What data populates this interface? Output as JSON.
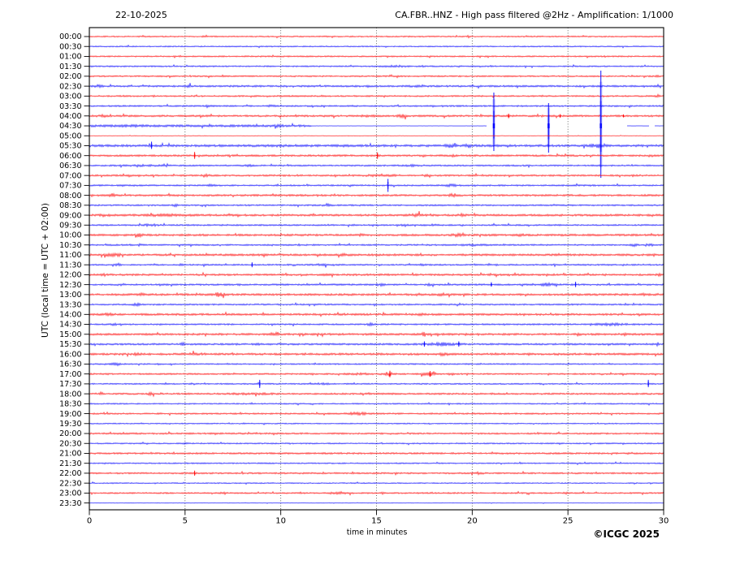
{
  "header": {
    "date": "22-10-2025",
    "title": "CA.FBR..HNZ - High pass filtered @2Hz - Amplification: 1/1000"
  },
  "axes": {
    "y_label": "UTC (local time = UTC + 02:00)",
    "x_label": "time in minutes",
    "x_ticks": [
      0,
      5,
      10,
      15,
      20,
      25,
      30
    ]
  },
  "footer": {
    "copyright": "©ICGC 2025"
  },
  "chart_data": {
    "type": "line",
    "subtype": "helicorder-seismogram",
    "station": "CA.FBR..HNZ",
    "date": "22-10-2025",
    "filter": "High pass filtered @2Hz",
    "amplification": "1/1000",
    "minutes_per_row": 30,
    "x_range_minutes": [
      0,
      30
    ],
    "x_ticks": [
      0,
      5,
      10,
      15,
      20,
      25,
      30
    ],
    "grid_minutes": [
      5,
      10,
      15,
      20,
      25
    ],
    "trace_colors": {
      "red": "#ff0000",
      "blue": "#0000ff"
    },
    "frame_color": "#000000",
    "rows": [
      {
        "label": "00:00",
        "color": "red",
        "amp": 0.8,
        "events": [],
        "spikes": []
      },
      {
        "label": "00:30",
        "color": "blue",
        "amp": 0.75,
        "events": [],
        "spikes": []
      },
      {
        "label": "01:00",
        "color": "red",
        "amp": 0.85,
        "events": [],
        "spikes": []
      },
      {
        "label": "01:30",
        "color": "blue",
        "amp": 0.85,
        "events": [
          [
            16,
            0.7,
            0.6
          ]
        ],
        "spikes": []
      },
      {
        "label": "02:00",
        "color": "red",
        "amp": 0.9,
        "events": [
          [
            29.6,
            0.9,
            0.12
          ]
        ],
        "spikes": []
      },
      {
        "label": "02:30",
        "color": "blue",
        "amp": 1.1,
        "events": [
          [
            0.5,
            1.0,
            0.2
          ],
          [
            5.2,
            0.8,
            0.15
          ],
          [
            17,
            0.5,
            0.5
          ]
        ],
        "spikes": []
      },
      {
        "label": "03:00",
        "color": "red",
        "amp": 0.95,
        "events": [
          [
            21.1,
            0.9,
            0.06
          ],
          [
            29.7,
            1.2,
            0.15
          ]
        ],
        "spikes": []
      },
      {
        "label": "03:30",
        "color": "blue",
        "amp": 0.95,
        "events": [
          [
            6.2,
            1.4,
            0.1
          ],
          [
            9.5,
            0.7,
            0.25
          ]
        ],
        "spikes": []
      },
      {
        "label": "04:00",
        "color": "red",
        "amp": 1.15,
        "events": [
          [
            0.7,
            1.1,
            0.2
          ],
          [
            14.6,
            0.7,
            0.35
          ],
          [
            16.35,
            1.8,
            0.2
          ]
        ],
        "spikes": [
          [
            21.9,
            2.8,
            2.8
          ],
          [
            24.6,
            2.2,
            2.2
          ],
          [
            27.9,
            1.8,
            1.8
          ]
        ]
      },
      {
        "label": "04:30",
        "color": "blue",
        "amp": 1.4,
        "segments": [
          [
            0,
            11.6,
            "n"
          ],
          [
            11.6,
            20.75,
            "f"
          ],
          [
            28.1,
            29.25,
            "f"
          ],
          [
            29.55,
            30,
            "f"
          ]
        ],
        "events": [
          [
            2.2,
            0.7,
            0.5
          ],
          [
            9.9,
            1.0,
            0.2
          ]
        ],
        "spikes": [
          [
            21.13,
            41,
            31
          ],
          [
            23.99,
            28,
            33
          ],
          [
            26.72,
            68,
            64
          ]
        ]
      },
      {
        "label": "05:00",
        "color": "red",
        "amp": 0.3,
        "events": [],
        "spikes": []
      },
      {
        "label": "05:30",
        "color": "blue",
        "amp": 1.4,
        "events": [
          [
            10,
            0.4,
            1.2
          ],
          [
            18.9,
            1.4,
            0.3
          ],
          [
            19.8,
            1.8,
            0.15
          ],
          [
            26.35,
            1.7,
            0.35
          ]
        ],
        "spikes": [
          [
            3.25,
            5,
            4
          ]
        ]
      },
      {
        "label": "06:00",
        "color": "red",
        "amp": 1.15,
        "events": [
          [
            17.4,
            0.9,
            0.12
          ],
          [
            18.96,
            1.2,
            0.1
          ],
          [
            29.3,
            1.4,
            0.1
          ]
        ],
        "spikes": [
          [
            5.5,
            4.5,
            4
          ],
          [
            15.05,
            4,
            4
          ]
        ]
      },
      {
        "label": "06:30",
        "color": "blue",
        "amp": 0.95,
        "events": [
          [
            3,
            0.6,
            0.9
          ],
          [
            8.3,
            0.7,
            0.25
          ],
          [
            16.9,
            0.6,
            0.4
          ]
        ],
        "spikes": []
      },
      {
        "label": "07:00",
        "color": "red",
        "amp": 1.05,
        "events": [
          [
            6.1,
            1.9,
            0.15
          ],
          [
            15.2,
            0.7,
            0.9
          ],
          [
            17.6,
            1.1,
            0.15
          ]
        ],
        "spikes": []
      },
      {
        "label": "07:30",
        "color": "blue",
        "amp": 0.95,
        "events": [
          [
            6.3,
            1.1,
            0.2
          ],
          [
            18.9,
            0.9,
            0.35
          ]
        ],
        "spikes": [
          [
            15.6,
            8,
            8
          ]
        ]
      },
      {
        "label": "08:00",
        "color": "red",
        "amp": 1.15,
        "events": [
          [
            1.2,
            1.4,
            0.15
          ],
          [
            19,
            1.4,
            0.25
          ]
        ],
        "spikes": []
      },
      {
        "label": "08:30",
        "color": "blue",
        "amp": 0.95,
        "events": [
          [
            4.5,
            1.1,
            0.18
          ],
          [
            12.4,
            1.1,
            0.18
          ]
        ],
        "spikes": []
      },
      {
        "label": "09:00",
        "color": "red",
        "amp": 1.25,
        "events": [
          [
            0.7,
            1.4,
            0.15
          ],
          [
            4,
            0.7,
            1.0
          ],
          [
            17.1,
            1.4,
            0.3
          ],
          [
            19.5,
            0.7,
            0.2
          ]
        ],
        "spikes": []
      },
      {
        "label": "09:30",
        "color": "blue",
        "amp": 0.95,
        "events": [
          [
            3.2,
            1.1,
            0.3
          ],
          [
            16.5,
            1.1,
            0.15
          ],
          [
            18,
            0.7,
            0.18
          ]
        ],
        "spikes": []
      },
      {
        "label": "10:00",
        "color": "red",
        "amp": 1.25,
        "events": [
          [
            2.6,
            1.4,
            0.18
          ],
          [
            14.2,
            0.9,
            0.18
          ],
          [
            19.2,
            1.4,
            0.22
          ],
          [
            22.5,
            0.7,
            0.2
          ]
        ],
        "spikes": []
      },
      {
        "label": "10:30",
        "color": "blue",
        "amp": 0.95,
        "events": [
          [
            2.6,
            0.9,
            0.18
          ],
          [
            11,
            0.7,
            0.15
          ],
          [
            13.6,
            0.7,
            0.15
          ],
          [
            20,
            0.6,
            0.7
          ],
          [
            28.5,
            1.1,
            0.2
          ],
          [
            29.3,
            0.9,
            0.15
          ]
        ],
        "spikes": []
      },
      {
        "label": "11:00",
        "color": "red",
        "amp": 1.25,
        "events": [
          [
            1.3,
            1.1,
            0.45
          ],
          [
            13.3,
            0.7,
            0.2
          ],
          [
            29.5,
            0.7,
            0.12
          ]
        ],
        "spikes": []
      },
      {
        "label": "11:30",
        "color": "blue",
        "amp": 0.95,
        "events": [
          [
            1.5,
            1.1,
            0.15
          ],
          [
            4.85,
            1.7,
            0.12
          ],
          [
            6,
            1.4,
            0.09
          ],
          [
            12.2,
            0.7,
            0.35
          ],
          [
            17.4,
            0.7,
            0.15
          ]
        ],
        "spikes": [
          [
            8.5,
            3,
            3
          ]
        ]
      },
      {
        "label": "12:00",
        "color": "red",
        "amp": 1.2,
        "events": [
          [
            0.7,
            1.5,
            0.15
          ],
          [
            12.4,
            1.1,
            0.15
          ],
          [
            29.7,
            1.1,
            0.12
          ]
        ],
        "spikes": []
      },
      {
        "label": "12:30",
        "color": "blue",
        "amp": 1.05,
        "events": [
          [
            1.7,
            0.7,
            0.2
          ],
          [
            15.2,
            1.1,
            0.18
          ],
          [
            17.8,
            0.7,
            0.18
          ],
          [
            23.9,
            1.7,
            0.28
          ]
        ],
        "spikes": [
          [
            21,
            3,
            2.5
          ],
          [
            25.4,
            3.5,
            3
          ]
        ]
      },
      {
        "label": "13:00",
        "color": "red",
        "amp": 1.25,
        "events": [
          [
            2.7,
            1.1,
            0.15
          ],
          [
            6.8,
            1.9,
            0.3
          ],
          [
            18.4,
            1.4,
            0.15
          ],
          [
            29,
            0.9,
            0.15
          ]
        ],
        "spikes": []
      },
      {
        "label": "13:30",
        "color": "blue",
        "amp": 0.95,
        "events": [
          [
            2.45,
            1.4,
            0.18
          ]
        ],
        "spikes": []
      },
      {
        "label": "14:00",
        "color": "red",
        "amp": 1.25,
        "events": [
          [
            1,
            1.4,
            0.15
          ],
          [
            17.3,
            1.4,
            0.15
          ]
        ],
        "spikes": []
      },
      {
        "label": "14:30",
        "color": "blue",
        "amp": 0.95,
        "events": [
          [
            1.3,
            0.7,
            0.18
          ],
          [
            14.7,
            1.1,
            0.15
          ],
          [
            27.2,
            0.9,
            0.8
          ]
        ],
        "spikes": []
      },
      {
        "label": "15:00",
        "color": "red",
        "amp": 1.25,
        "events": [
          [
            9.8,
            1.7,
            0.15
          ],
          [
            17.5,
            1.7,
            0.15
          ],
          [
            25.5,
            0.9,
            0.2
          ],
          [
            28,
            0.9,
            0.15
          ]
        ],
        "spikes": []
      },
      {
        "label": "15:30",
        "color": "blue",
        "amp": 1.1,
        "events": [
          [
            4.9,
            1.1,
            0.15
          ],
          [
            8.9,
            1.1,
            0.15
          ],
          [
            18.4,
            1.4,
            0.75
          ],
          [
            29.7,
            1.7,
            0.09
          ]
        ],
        "spikes": [
          [
            17.5,
            3.5,
            3
          ],
          [
            19.3,
            3.5,
            3
          ]
        ]
      },
      {
        "label": "16:00",
        "color": "red",
        "amp": 1.25,
        "events": [
          [
            2.5,
            1.1,
            0.15
          ],
          [
            5.5,
            0.7,
            0.5
          ],
          [
            18.5,
            1.4,
            0.2
          ],
          [
            23,
            0.7,
            0.15
          ]
        ],
        "spikes": []
      },
      {
        "label": "16:30",
        "color": "blue",
        "amp": 0.85,
        "events": [
          [
            1.4,
            1.7,
            0.2
          ]
        ],
        "spikes": []
      },
      {
        "label": "17:00",
        "color": "red",
        "amp": 0.95,
        "events": [
          [
            14,
            0.9,
            0.5
          ],
          [
            15.6,
            1.7,
            0.3
          ],
          [
            17.7,
            2.1,
            0.35
          ],
          [
            18.9,
            0.9,
            0.15
          ]
        ],
        "spikes": [
          [
            15.7,
            4,
            4
          ],
          [
            17.8,
            3.5,
            3.5
          ]
        ]
      },
      {
        "label": "17:30",
        "color": "blue",
        "amp": 0.85,
        "events": [
          [
            12.3,
            0.7,
            0.2
          ]
        ],
        "spikes": [
          [
            8.9,
            5,
            5
          ],
          [
            29.2,
            5,
            4
          ]
        ]
      },
      {
        "label": "18:00",
        "color": "red",
        "amp": 1.05,
        "events": [
          [
            0.6,
            1.5,
            0.15
          ],
          [
            3.2,
            1.1,
            0.15
          ],
          [
            8.5,
            0.5,
            1.2
          ]
        ],
        "spikes": []
      },
      {
        "label": "18:30",
        "color": "blue",
        "amp": 0.8,
        "events": [],
        "spikes": []
      },
      {
        "label": "19:00",
        "color": "red",
        "amp": 0.95,
        "events": [
          [
            14,
            1.5,
            0.45
          ]
        ],
        "spikes": []
      },
      {
        "label": "19:30",
        "color": "blue",
        "amp": 0.7,
        "events": [],
        "spikes": []
      },
      {
        "label": "20:00",
        "color": "red",
        "amp": 1.0,
        "events": [],
        "spikes": []
      },
      {
        "label": "20:30",
        "color": "blue",
        "amp": 0.8,
        "events": [
          [
            5,
            0.5,
            0.2
          ]
        ],
        "spikes": []
      },
      {
        "label": "21:00",
        "color": "red",
        "amp": 1.05,
        "events": [],
        "spikes": []
      },
      {
        "label": "21:30",
        "color": "blue",
        "amp": 0.8,
        "events": [],
        "spikes": []
      },
      {
        "label": "22:00",
        "color": "red",
        "amp": 1.0,
        "events": [
          [
            20.4,
            1.1,
            0.2
          ]
        ],
        "spikes": [
          [
            5.5,
            3.2,
            3
          ]
        ]
      },
      {
        "label": "22:30",
        "color": "blue",
        "amp": 0.7,
        "events": [],
        "spikes": []
      },
      {
        "label": "23:00",
        "color": "red",
        "amp": 0.9,
        "events": [
          [
            7,
            1.1,
            0.15
          ],
          [
            13,
            1.1,
            0.45
          ],
          [
            15.4,
            1.1,
            0.15
          ],
          [
            24.9,
            0.7,
            0.12
          ]
        ],
        "spikes": []
      },
      {
        "label": "23:30",
        "color": "blue",
        "amp": 0.35,
        "events": [],
        "spikes": []
      }
    ]
  }
}
